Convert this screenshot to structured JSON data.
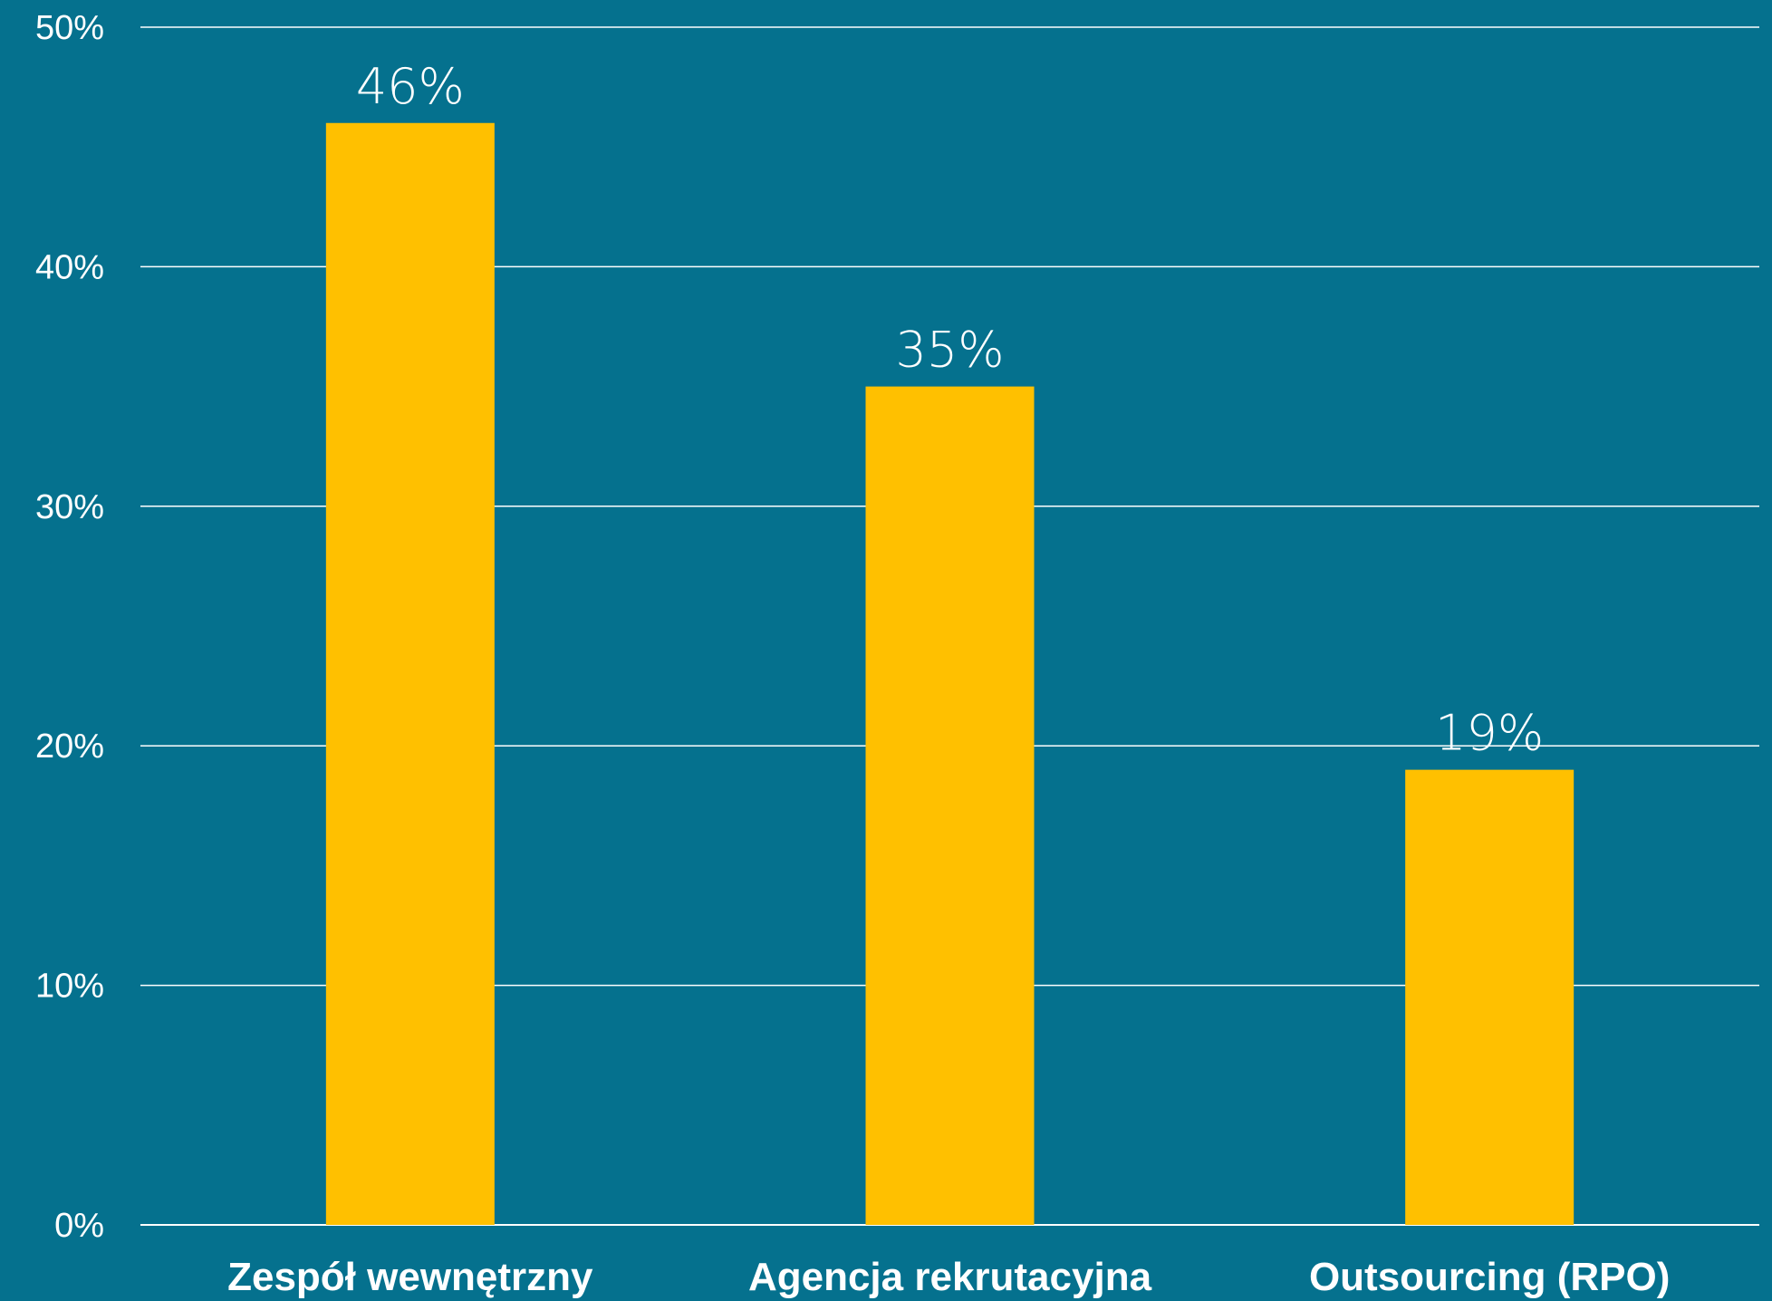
{
  "chart_data": {
    "type": "bar",
    "categories": [
      "Zespół wewnętrzny",
      "Agencja rekrutacyjna",
      "Outsourcing (RPO)"
    ],
    "values": [
      46,
      35,
      19
    ],
    "value_labels": [
      "46%",
      "35%",
      "19%"
    ],
    "ylim": [
      0,
      50
    ],
    "yticks": [
      0,
      10,
      20,
      30,
      40,
      50
    ],
    "ytick_labels": [
      "0%",
      "10%",
      "20%",
      "30%",
      "40%",
      "50%"
    ],
    "grid": true,
    "title": "",
    "xlabel": "",
    "ylabel": "",
    "colors": {
      "background": "#05718e",
      "bar": "#ffc000",
      "grid": "#ffffff",
      "text": "#ffffff"
    }
  }
}
